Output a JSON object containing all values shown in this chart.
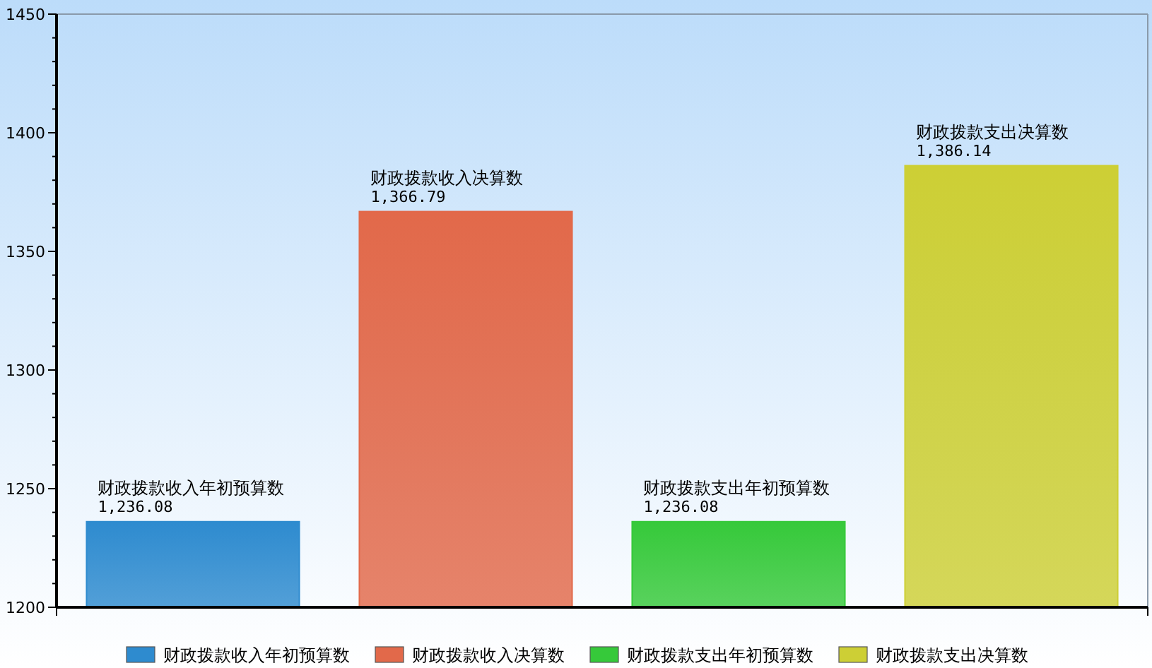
{
  "chart_data": {
    "type": "bar",
    "categories": [
      null,
      null,
      null,
      null
    ],
    "series": [
      {
        "name": "财政拨款收入年初预算数",
        "color": "#2e8bcf",
        "values": [
          1236.08,
          null,
          null,
          null
        ],
        "value_labels": [
          "1,236.08",
          null,
          null,
          null
        ]
      },
      {
        "name": "财政拨款收入决算数",
        "color": "#e2694a",
        "values": [
          null,
          1366.79,
          null,
          null
        ],
        "value_labels": [
          null,
          "1,366.79",
          null,
          null
        ]
      },
      {
        "name": "财政拨款支出年初预算数",
        "color": "#36c93a",
        "values": [
          null,
          null,
          1236.08,
          null
        ],
        "value_labels": [
          null,
          null,
          "1,236.08",
          null
        ]
      },
      {
        "name": "财政拨款支出决算数",
        "color": "#cdcf35",
        "values": [
          null,
          null,
          null,
          1386.14
        ],
        "value_labels": [
          null,
          null,
          null,
          "1,386.14"
        ]
      }
    ],
    "ylim": [
      1200,
      1450
    ],
    "yticks": [
      1200,
      {
        "value": 1210,
        "label": null
      },
      {
        "value": 1220,
        "label": null
      },
      {
        "value": 1230,
        "label": null
      },
      {
        "value": 1240,
        "label": null
      },
      1250,
      {
        "value": 1260,
        "label": null
      },
      {
        "value": 1270,
        "label": null
      },
      {
        "value": 1280,
        "label": null
      },
      {
        "value": 1290,
        "label": null
      },
      1300,
      {
        "value": 1310,
        "label": null
      },
      {
        "value": 1320,
        "label": null
      },
      {
        "value": 1330,
        "label": null
      },
      {
        "value": 1340,
        "label": null
      },
      1350,
      {
        "value": 1360,
        "label": null
      },
      {
        "value": 1370,
        "label": null
      },
      {
        "value": 1380,
        "label": null
      },
      {
        "value": 1390,
        "label": null
      },
      1400,
      {
        "value": 1410,
        "label": null
      },
      {
        "value": 1420,
        "label": null
      },
      {
        "value": 1430,
        "label": null
      },
      {
        "value": 1440,
        "label": null
      },
      1450
    ],
    "grid": false,
    "legend": "bottom"
  }
}
